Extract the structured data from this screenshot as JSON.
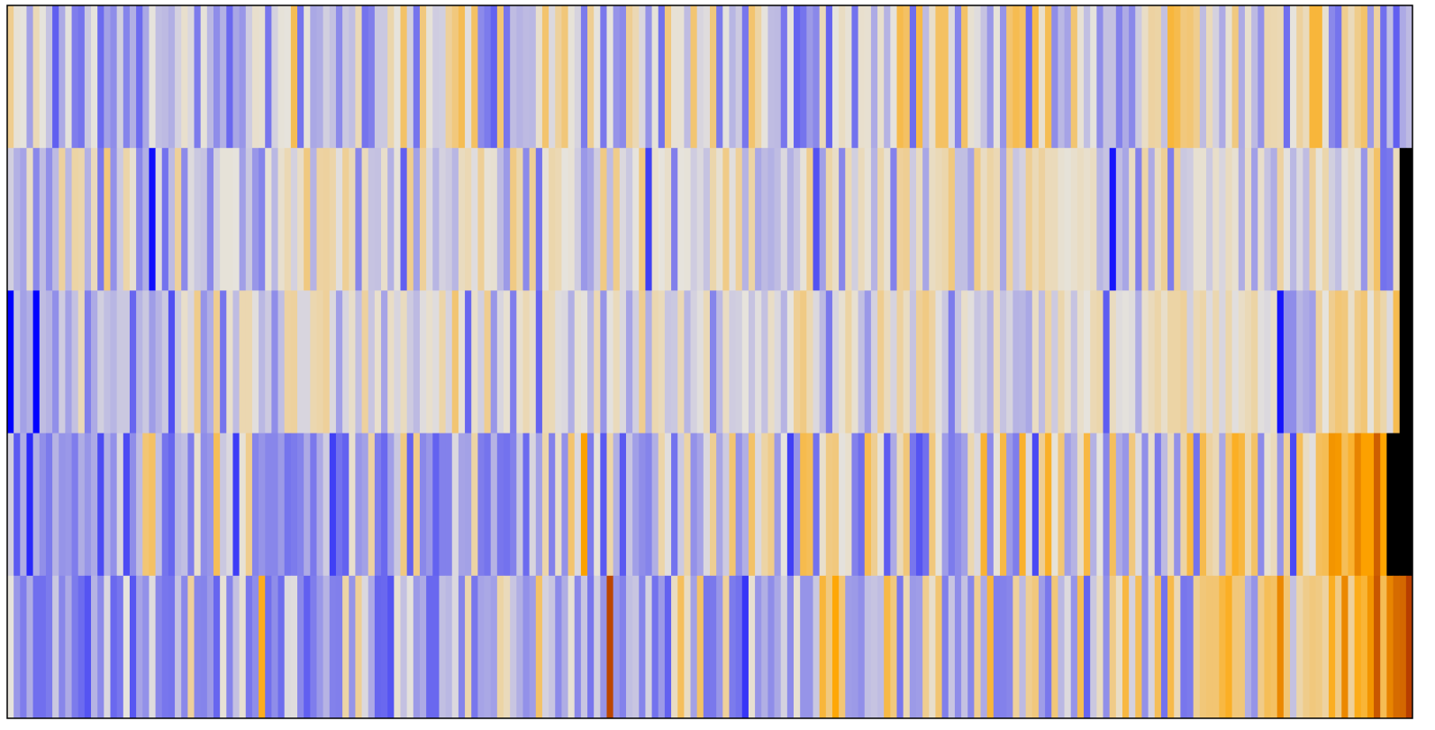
{
  "chart_data": {
    "type": "heatmap",
    "title": "",
    "xlabel": "",
    "ylabel": "",
    "rows": 5,
    "columns": 220,
    "value_range": [
      -1,
      1
    ],
    "colormap": {
      "low": "#0000ff",
      "mid": "#e6e3dc",
      "high_1": "#ffa500",
      "high_2": "#8b0000"
    },
    "legend": "none",
    "grid": false,
    "values": [
      [
        0.21,
        0.02,
        0.0,
        -0.29,
        0.1,
        0.0,
        -0.14,
        -0.58,
        -0.25,
        -0.01,
        -0.45,
        -0.49,
        -0.12,
        0.0,
        -0.53,
        -0.29,
        -0.38,
        -0.09,
        -0.42,
        -0.23,
        -0.53,
        -0.26,
        0.0,
        -0.16,
        -0.18,
        -0.23,
        -0.08,
        0.04,
        -0.05,
        -0.46,
        0.01,
        -0.19,
        -0.38,
        -0.22,
        -0.54,
        -0.27,
        -0.34,
        -0.1,
        0.04,
        0.03,
        -0.48,
        -0.08,
        0.01,
        0.0,
        0.37,
        -0.49,
        0.01,
        -0.26,
        -0.24,
        -0.09,
        -0.15,
        -0.39,
        -0.12,
        -0.16,
        0.1,
        -0.49,
        -0.44,
        -0.12,
        -0.12,
        0.13,
        0.0,
        0.32,
        -0.09,
        -0.49,
        0.26,
        0.01,
        -0.1,
        -0.09,
        0.18,
        0.26,
        0.37,
        -0.02,
        0.33,
        -0.39,
        -0.46,
        -0.57,
        0.28,
        -0.48,
        -0.17,
        -0.21,
        -0.18,
        -0.19,
        0.04,
        0.3,
        -0.05,
        0.17,
        0.27,
        0.01,
        -0.07,
        -0.46,
        0.2,
        0.0,
        -0.47,
        0.0,
        -0.35,
        -0.39,
        0.2,
        0.11,
        -0.05,
        -0.35,
        0.01,
        -0.5,
        0.26,
        0.02,
        0.02,
        -0.17,
        0.29,
        -0.06,
        -0.03,
        0.26,
        -0.46,
        -0.01,
        -0.2,
        -0.11,
        -0.48,
        0.3,
        0.15,
        0.0,
        -0.17,
        -0.18,
        -0.48,
        0.0,
        -0.56,
        -0.49,
        -0.32,
        -0.4,
        0.1,
        -0.56,
        0.0,
        0.07,
        0.02,
        -0.5,
        0.04,
        0.03,
        -0.25,
        0.04,
        -0.21,
        0.0,
        0.39,
        0.33,
        -0.52,
        0.4,
        -0.18,
        0.05,
        0.33,
        0.33,
        -0.04,
        -0.42,
        0.32,
        0.03,
        -0.03,
        -0.14,
        -0.33,
        0.01,
        -0.35,
        0.3,
        0.38,
        0.33,
        -0.53,
        0.4,
        0.04,
        0.37,
        -0.38,
        -0.19,
        -0.28,
        0.29,
        0.02,
        -0.16,
        0.0,
        -0.38,
        -0.15,
        -0.15,
        -0.43,
        -0.25,
        -0.4,
        -0.11,
        0.06,
        0.16,
        0.15,
        -0.15,
        0.44,
        0.39,
        0.26,
        0.28,
        0.21,
        -0.17,
        0.09,
        -0.08,
        -0.25,
        0.03,
        0.25,
        -0.25,
        0.04,
        -0.18,
        -0.36,
        0.13,
        0.12,
        0.11,
        -0.51,
        0.0,
        0.17,
        0.09,
        0.44,
        0.44,
        0.03,
        -0.4,
        -0.49,
        0.21,
        0.09,
        0.22,
        0.31,
        -0.32,
        0.17,
        -0.51,
        -0.16,
        -0.58,
        -0.25,
        -0.18
      ],
      [
        -0.09,
        -0.22,
        -0.28,
        0.06,
        -0.4,
        -0.17,
        -0.37,
        -0.18,
        0.17,
        -0.19,
        0.15,
        0.13,
        -0.22,
        0.09,
        -0.47,
        0.27,
        -0.36,
        -0.11,
        0.14,
        0.03,
        -0.4,
        -0.23,
        -0.94,
        -0.04,
        -0.5,
        -0.17,
        0.18,
        -0.39,
        -0.04,
        -0.12,
        -0.14,
        -0.4,
        -0.09,
        0.01,
        0.01,
        0.0,
        -0.3,
        -0.12,
        -0.34,
        -0.42,
        0.02,
        -0.19,
        0.04,
        0.11,
        -0.08,
        0.06,
        0.25,
        -0.21,
        0.16,
        0.17,
        0.14,
        -0.02,
        0.19,
        0.1,
        -0.41,
        0.09,
        -0.14,
        -0.15,
        0.05,
        -0.22,
        0.01,
        -0.58,
        0.21,
        -0.29,
        0.18,
        -0.05,
        -0.2,
        -0.08,
        -0.11,
        -0.2,
        0.08,
        0.11,
        -0.03,
        0.19,
        0.02,
        0.03,
        -0.18,
        -0.32,
        0.24,
        0.13,
        -0.39,
        0.19,
        -0.49,
        0.02,
        0.13,
        0.11,
        0.0,
        0.02,
        -0.1,
        -0.33,
        -0.27,
        -0.1,
        0.24,
        -0.17,
        0.22,
        -0.05,
        -0.12,
        0.0,
        0.26,
        -0.72,
        0.04,
        0.0,
        0.05,
        -0.44,
        0.0,
        0.01,
        -0.1,
        -0.05,
        -0.14,
        0.13,
        0.03,
        0.23,
        -0.02,
        0.18,
        -0.21,
        0.15,
        -0.26,
        -0.18,
        -0.22,
        -0.17,
        -0.05,
        -0.22,
        -0.13,
        0.01,
        0.21,
        -0.64,
        -0.3,
        0.14,
        0.06,
        -0.41,
        0.1,
        -0.09,
        0.09,
        0.02,
        -0.21,
        0.13,
        0.03,
        -0.43,
        0.18,
        0.2,
        -0.11,
        0.08,
        -0.27,
        0.07,
        0.1,
        0.13,
        0.25,
        -0.16,
        -0.16,
        -0.28,
        0.23,
        0.07,
        0.15,
        0.11,
        -0.27,
        0.16,
        -0.13,
        -0.08,
        0.2,
        0.1,
        0.17,
        0.09,
        0.09,
        0.03,
        0.01,
        0.04,
        0.07,
        0.04,
        0.07,
        -0.2,
        -0.14,
        -0.91,
        -0.17,
        -0.27,
        0.07,
        -0.43,
        0.15,
        -0.25,
        0.08,
        0.19,
        -0.45,
        0.19,
        -0.12,
        -0.1,
        0.03,
        0.03,
        -0.11,
        0.05,
        -0.06,
        0.08,
        0.03,
        -0.24,
        0.06,
        -0.3,
        0.05,
        -0.14,
        -0.24,
        0.16,
        -0.01,
        -0.19,
        -0.05,
        -0.17,
        0.18,
        0.01,
        0.13,
        -0.09,
        -0.16,
        0.02,
        0.08,
        0.03,
        -0.34,
        0.13,
        0.32,
        -0.5,
        -0.47,
        0.09
      ],
      [
        -1.0,
        -0.15,
        -0.29,
        -0.23,
        -0.99,
        -0.17,
        -0.21,
        -0.37,
        -0.1,
        -0.29,
        -0.15,
        0.1,
        -0.44,
        -0.25,
        -0.09,
        -0.16,
        -0.2,
        -0.12,
        -0.12,
        -0.55,
        -0.2,
        -0.12,
        -0.31,
        -0.21,
        -0.12,
        -0.65,
        -0.12,
        0.05,
        -0.06,
        0.22,
        -0.35,
        -0.23,
        0.21,
        -0.49,
        0.04,
        -0.17,
        0.12,
        0.12,
        -0.02,
        -0.19,
        -0.11,
        -0.38,
        -0.16,
        0.16,
        0.17,
        -0.06,
        -0.06,
        0.12,
        0.14,
        0.18,
        -0.05,
        -0.3,
        -0.06,
        0.05,
        -0.16,
        0.17,
        -0.13,
        0.04,
        -0.28,
        0.06,
        -0.06,
        0.08,
        -0.11,
        -0.18,
        -0.03,
        0.04,
        -0.03,
        0.14,
        -0.07,
        0.29,
        0.02,
        -0.55,
        0.05,
        -0.09,
        0.21,
        -0.34,
        -0.06,
        0.03,
        -0.45,
        0.04,
        0.11,
        0.05,
        -0.56,
        0.11,
        0.1,
        -0.03,
        -0.05,
        -0.23,
        0.03,
        -0.01,
        -0.19,
        0.11,
        -0.35,
        -0.01,
        0.09,
        -0.05,
        -0.28,
        -0.09,
        0.21,
        -0.23,
        0.12,
        0.09,
        -0.13,
        -0.12,
        0.11,
        -0.2,
        -0.08,
        -0.02,
        0.1,
        -0.42,
        -0.18,
        0.07,
        -0.1,
        -0.09,
        0.0,
        -0.14,
        -0.02,
        -0.15,
        0.06,
        -0.05,
        -0.21,
        0.0,
        0.19,
        0.24,
        0.11,
        -0.05,
        -0.18,
        -0.47,
        -0.06,
        0.03,
        0.15,
        0.03,
        -0.16,
        -0.33,
        -0.08,
        0.21,
        0.09,
        -0.07,
        0.17,
        0.07,
        -0.14,
        0.19,
        0.24,
        0.16,
        -0.02,
        -0.12,
        -0.46,
        -0.14,
        0.05,
        -0.02,
        -0.13,
        -0.09,
        -0.21,
        0.09,
        -0.14,
        -0.07,
        -0.21,
        -0.2,
        -0.26,
        0.07,
        -0.17,
        0.15,
        -0.11,
        0.13,
        0.04,
        -0.14,
        0.05,
        0.0,
        0.11,
        0.13,
        -0.59,
        0.08,
        -0.03,
        -0.01,
        -0.03,
        -0.24,
        0.04,
        0.09,
        0.14,
        0.05,
        0.15,
        0.15,
        0.18,
        -0.09,
        0.11,
        0.14,
        -0.04,
        0.12,
        -0.06,
        0.13,
        -0.02,
        0.06,
        0.1,
        0.15,
        -0.02,
        -0.05,
        0.06,
        -0.91,
        -0.38,
        -0.38,
        -0.2,
        -0.25,
        -0.3,
        0.17,
        0.0,
        0.21,
        0.28,
        0.26,
        0.05,
        0.23,
        0.28,
        0.01,
        0.22,
        0.13,
        -0.04,
        0.38
      ],
      [
        -0.09,
        -0.6,
        -0.24,
        -0.82,
        -0.23,
        -0.37,
        -0.46,
        -0.21,
        -0.35,
        -0.33,
        -0.45,
        -0.24,
        -0.34,
        -0.25,
        -0.67,
        -0.22,
        -0.36,
        -0.06,
        -0.67,
        -0.38,
        -0.17,
        0.28,
        0.33,
        -0.16,
        -0.49,
        -0.55,
        -0.2,
        -0.16,
        -0.45,
        0.04,
        -0.38,
        -0.34,
        0.36,
        -0.12,
        -0.05,
        -0.73,
        0.02,
        0.21,
        -0.42,
        -0.35,
        -0.41,
        -0.41,
        -0.32,
        -0.49,
        -0.46,
        -0.42,
        -0.25,
        -0.47,
        -0.25,
        -0.1,
        -0.72,
        -0.5,
        -0.57,
        0.04,
        -0.34,
        -0.29,
        0.16,
        -0.45,
        -0.54,
        -0.3,
        -0.12,
        0.25,
        -0.57,
        0.23,
        -0.4,
        -0.33,
        -0.57,
        -0.43,
        -0.43,
        -0.05,
        -0.28,
        -0.29,
        0.15,
        -0.45,
        -0.49,
        -0.21,
        -0.48,
        -0.5,
        -0.43,
        -0.12,
        -0.53,
        -0.06,
        -0.29,
        0.14,
        -0.43,
        0.05,
        -0.36,
        0.3,
        -0.05,
        0.61,
        -0.46,
        0.01,
        -0.61,
        0.14,
        -0.23,
        -0.61,
        -0.13,
        -0.3,
        -0.38,
        -0.42,
        -0.23,
        0.14,
        -0.02,
        -0.5,
        -0.11,
        0.15,
        -0.36,
        -0.28,
        -0.05,
        0.2,
        -0.27,
        -0.11,
        0.29,
        -0.36,
        -0.23,
        0.32,
        -0.05,
        0.15,
        0.22,
        -0.32,
        0.0,
        -0.72,
        -0.35,
        0.39,
        0.36,
        -0.5,
        0.04,
        0.24,
        0.26,
        -0.01,
        0.04,
        -0.43,
        -0.52,
        0.38,
        0.2,
        0.02,
        -0.59,
        -0.25,
        0.1,
        0.27,
        -0.48,
        -0.63,
        -0.51,
        0.26,
        0.01,
        -0.31,
        -0.46,
        -0.38,
        -0.29,
        0.12,
        -0.05,
        0.46,
        -0.39,
        0.01,
        0.41,
        -0.32,
        -0.45,
        0.48,
        -0.05,
        -0.68,
        0.2,
        0.49,
        0.01,
        0.28,
        -0.3,
        -0.21,
        0.07,
        0.42,
        -0.22,
        0.0,
        -0.41,
        0.35,
        -0.25,
        -0.34,
        0.26,
        -0.04,
        -0.37,
        0.05,
        -0.46,
        -0.18,
        0.09,
        -0.36,
        0.15,
        0.42,
        -0.5,
        0.39,
        0.16,
        0.11,
        -0.26,
        0.29,
        0.5,
        0.43,
        0.12,
        0.32,
        -0.39,
        0.03,
        0.09,
        -0.35,
        0.19,
        -0.68,
        0.36,
        0.07,
        -0.02,
        0.35,
        0.37,
        0.64,
        0.63,
        0.36,
        0.47,
        0.68,
        0.61,
        0.61,
        0.77,
        0.6
      ],
      [
        0.0,
        -0.33,
        -0.45,
        -0.24,
        -0.51,
        -0.51,
        -0.46,
        -0.12,
        -0.41,
        -0.25,
        -0.46,
        -0.53,
        -0.63,
        -0.21,
        -0.39,
        -0.05,
        -0.54,
        -0.48,
        0.0,
        -0.62,
        -0.28,
        -0.36,
        -0.03,
        -0.41,
        -0.48,
        -0.49,
        -0.14,
        -0.4,
        0.18,
        -0.41,
        -0.42,
        -0.32,
        -0.55,
        0.02,
        -0.42,
        -0.15,
        0.03,
        -0.48,
        -0.38,
        0.52,
        -0.51,
        -0.38,
        -0.52,
        -0.04,
        -0.03,
        -0.4,
        -0.58,
        -0.45,
        -0.33,
        -0.21,
        -0.43,
        -0.44,
        0.15,
        -0.35,
        0.19,
        -0.05,
        -0.25,
        -0.55,
        -0.54,
        -0.63,
        0.03,
        -0.15,
        -0.01,
        -0.32,
        -0.25,
        -0.54,
        -0.54,
        -0.16,
        -0.19,
        -0.05,
        -0.42,
        0.13,
        -0.48,
        -0.28,
        -0.26,
        -0.3,
        0.15,
        0.09,
        -0.13,
        -0.23,
        -0.36,
        -0.31,
        0.32,
        -0.08,
        -0.13,
        -0.39,
        -0.24,
        0.02,
        -0.4,
        -0.13,
        -0.48,
        -0.09,
        -0.35,
        0.83,
        -0.34,
        -0.43,
        -0.16,
        -0.13,
        -0.42,
        -0.08,
        -0.5,
        -0.32,
        -0.57,
        0.07,
        0.35,
        0.07,
        -0.29,
        0.32,
        -0.48,
        -0.47,
        -0.34,
        0.18,
        -0.46,
        -0.5,
        -0.76,
        0.03,
        -0.34,
        -0.23,
        -0.38,
        -0.26,
        -0.08,
        -0.39,
        0.03,
        -0.35,
        -0.35,
        -0.12,
        0.44,
        0.25,
        0.58,
        0.28,
        -0.31,
        -0.32,
        -0.37,
        -0.16,
        -0.14,
        -0.17,
        0.41,
        0.26,
        -0.48,
        0.12,
        -0.32,
        -0.31,
        0.21,
        0.05,
        0.29,
        -0.44,
        -0.13,
        -0.38,
        -0.15,
        -0.41,
        0.21,
        -0.25,
        0.44,
        -0.44,
        -0.43,
        -0.41,
        0.18,
        -0.18,
        0.2,
        0.26,
        -0.31,
        -0.47,
        0.27,
        -0.19,
        -0.04,
        -0.35,
        0.37,
        -0.56,
        -0.12,
        0.07,
        -0.37,
        0.23,
        0.06,
        0.42,
        -0.08,
        0.36,
        -0.36,
        -0.07,
        0.36,
        -0.5,
        0.4,
        0.11,
        -0.48,
        -0.46,
        0.2,
        0.27,
        0.29,
        0.29,
        0.42,
        0.5,
        0.27,
        0.27,
        -0.23,
        -0.35,
        0.23,
        0.36,
        0.33,
        0.67,
        0.29,
        -0.15,
        0.14,
        0.22,
        0.26,
        0.24,
        0.16,
        0.51,
        0.24,
        0.67,
        0.18,
        0.53,
        0.45,
        0.64,
        0.79,
        0.37,
        0.68,
        0.74,
        0.75,
        0.85,
        0.88
      ]
    ]
  }
}
